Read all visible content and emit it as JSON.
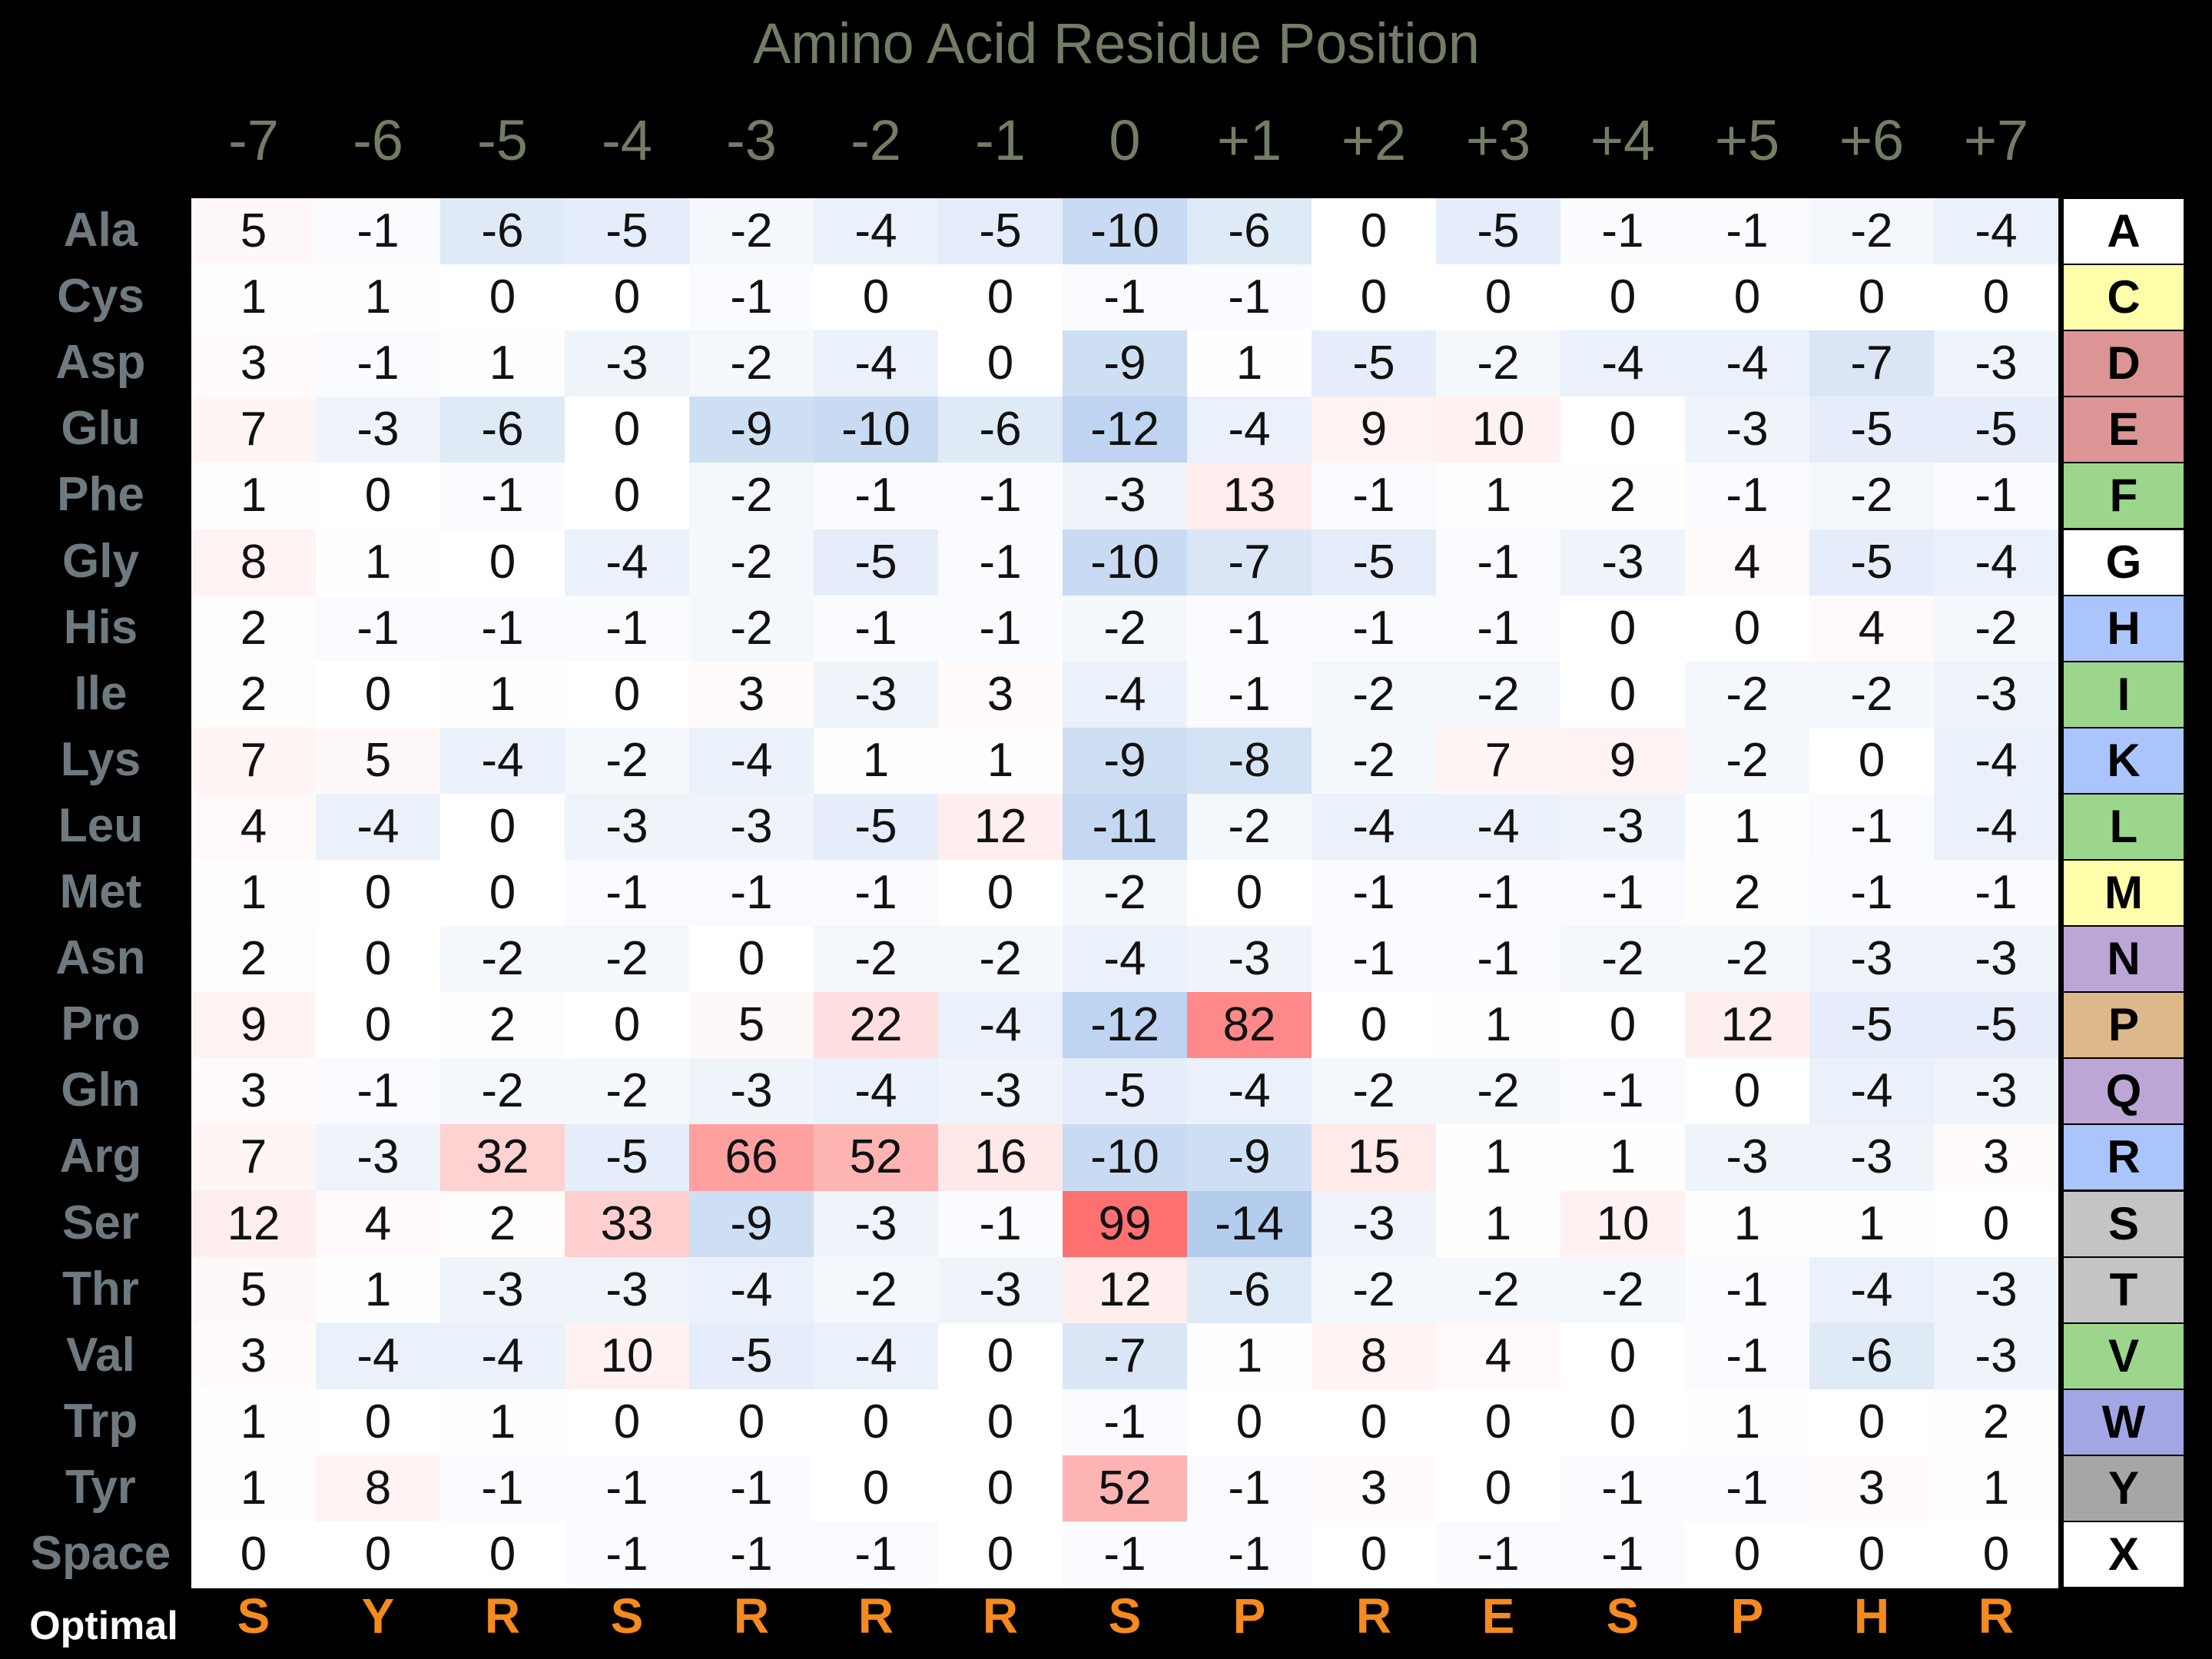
{
  "chart_data": {
    "type": "heatmap",
    "title": "Amino Acid Residue Position",
    "columns": [
      "-7",
      "-6",
      "-5",
      "-4",
      "-3",
      "-2",
      "-1",
      "0",
      "+1",
      "+2",
      "+3",
      "+4",
      "+5",
      "+6",
      "+7"
    ],
    "rows": [
      {
        "name": "Ala",
        "code": "A",
        "color": "#ffffff",
        "values": [
          5,
          -1,
          -6,
          -5,
          -2,
          -4,
          -5,
          -10,
          -6,
          0,
          -5,
          -1,
          -1,
          -2,
          -4
        ]
      },
      {
        "name": "Cys",
        "code": "C",
        "color": "#fdfdaa",
        "values": [
          1,
          1,
          0,
          0,
          -1,
          0,
          0,
          -1,
          -1,
          0,
          0,
          0,
          0,
          0,
          0
        ]
      },
      {
        "name": "Asp",
        "code": "D",
        "color": "#dc9494",
        "values": [
          3,
          -1,
          1,
          -3,
          -2,
          -4,
          0,
          -9,
          1,
          -5,
          -2,
          -4,
          -4,
          -7,
          -3
        ]
      },
      {
        "name": "Glu",
        "code": "E",
        "color": "#dc9494",
        "values": [
          7,
          -3,
          -6,
          0,
          -9,
          -10,
          -6,
          -12,
          -4,
          9,
          10,
          0,
          -3,
          -5,
          -5
        ]
      },
      {
        "name": "Phe",
        "code": "F",
        "color": "#9cd68c",
        "values": [
          1,
          0,
          -1,
          0,
          -2,
          -1,
          -1,
          -3,
          13,
          -1,
          1,
          2,
          -1,
          -2,
          -1
        ]
      },
      {
        "name": "Gly",
        "code": "G",
        "color": "#ffffff",
        "values": [
          8,
          1,
          0,
          -4,
          -2,
          -5,
          -1,
          -10,
          -7,
          -5,
          -1,
          -3,
          4,
          -5,
          -4
        ]
      },
      {
        "name": "His",
        "code": "H",
        "color": "#aac4fc",
        "values": [
          2,
          -1,
          -1,
          -1,
          -2,
          -1,
          -1,
          -2,
          -1,
          -1,
          -1,
          0,
          0,
          4,
          -2
        ]
      },
      {
        "name": "Ile",
        "code": "I",
        "color": "#9cd68c",
        "values": [
          2,
          0,
          1,
          0,
          3,
          -3,
          3,
          -4,
          -1,
          -2,
          -2,
          0,
          -2,
          -2,
          -3
        ]
      },
      {
        "name": "Lys",
        "code": "K",
        "color": "#aac4fc",
        "values": [
          7,
          5,
          -4,
          -2,
          -4,
          1,
          1,
          -9,
          -8,
          -2,
          7,
          9,
          -2,
          0,
          -4
        ]
      },
      {
        "name": "Leu",
        "code": "L",
        "color": "#9cd68c",
        "values": [
          4,
          -4,
          0,
          -3,
          -3,
          -5,
          12,
          -11,
          -2,
          -4,
          -4,
          -3,
          1,
          -1,
          -4
        ]
      },
      {
        "name": "Met",
        "code": "M",
        "color": "#fdfdaa",
        "values": [
          1,
          0,
          0,
          -1,
          -1,
          -1,
          0,
          -2,
          0,
          -1,
          -1,
          -1,
          2,
          -1,
          -1
        ]
      },
      {
        "name": "Asn",
        "code": "N",
        "color": "#bca6d6",
        "values": [
          2,
          0,
          -2,
          -2,
          0,
          -2,
          -2,
          -4,
          -3,
          -1,
          -1,
          -2,
          -2,
          -3,
          -3
        ]
      },
      {
        "name": "Pro",
        "code": "P",
        "color": "#dcb88a",
        "values": [
          9,
          0,
          2,
          0,
          5,
          22,
          -4,
          -12,
          82,
          0,
          1,
          0,
          12,
          -5,
          -5
        ]
      },
      {
        "name": "Gln",
        "code": "Q",
        "color": "#bca6d6",
        "values": [
          3,
          -1,
          -2,
          -2,
          -3,
          -4,
          -3,
          -5,
          -4,
          -2,
          -2,
          -1,
          0,
          -4,
          -3
        ]
      },
      {
        "name": "Arg",
        "code": "R",
        "color": "#aac4fc",
        "values": [
          7,
          -3,
          32,
          -5,
          66,
          52,
          16,
          -10,
          -9,
          15,
          1,
          1,
          -3,
          -3,
          3
        ]
      },
      {
        "name": "Ser",
        "code": "S",
        "color": "#c4c4c4",
        "values": [
          12,
          4,
          2,
          33,
          -9,
          -3,
          -1,
          99,
          -14,
          -3,
          1,
          10,
          1,
          1,
          0
        ]
      },
      {
        "name": "Thr",
        "code": "T",
        "color": "#c4c4c4",
        "values": [
          5,
          1,
          -3,
          -3,
          -4,
          -2,
          -3,
          12,
          -6,
          -2,
          -2,
          -2,
          -1,
          -4,
          -3
        ]
      },
      {
        "name": "Val",
        "code": "V",
        "color": "#9cd68c",
        "values": [
          3,
          -4,
          -4,
          10,
          -5,
          -4,
          0,
          -7,
          1,
          8,
          4,
          0,
          -1,
          -6,
          -3
        ]
      },
      {
        "name": "Trp",
        "code": "W",
        "color": "#a2a6e4",
        "values": [
          1,
          0,
          1,
          0,
          0,
          0,
          0,
          -1,
          0,
          0,
          0,
          0,
          1,
          0,
          2
        ]
      },
      {
        "name": "Tyr",
        "code": "Y",
        "color": "#a6a6a6",
        "values": [
          1,
          8,
          -1,
          -1,
          -1,
          0,
          0,
          52,
          -1,
          3,
          0,
          -1,
          -1,
          3,
          1
        ]
      },
      {
        "name": "Space",
        "code": "X",
        "color": "#ffffff",
        "values": [
          0,
          0,
          0,
          -1,
          -1,
          -1,
          0,
          -1,
          -1,
          0,
          -1,
          -1,
          0,
          0,
          0
        ]
      }
    ],
    "optimal_label": "Optimal",
    "optimal": [
      "S",
      "Y",
      "R",
      "S",
      "R",
      "R",
      "R",
      "S",
      "P",
      "R",
      "E",
      "S",
      "P",
      "H",
      "R"
    ]
  }
}
